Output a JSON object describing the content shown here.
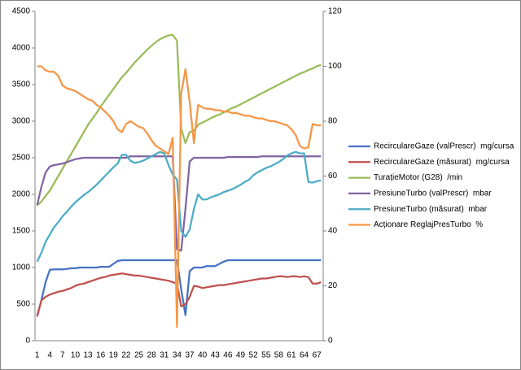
{
  "chart_data": {
    "type": "line",
    "categories": [
      1,
      null,
      null,
      4,
      null,
      null,
      7,
      null,
      null,
      10,
      null,
      null,
      13,
      null,
      null,
      16,
      null,
      null,
      19,
      null,
      null,
      22,
      null,
      null,
      25,
      null,
      null,
      28,
      null,
      null,
      31,
      null,
      null,
      34,
      null,
      null,
      37,
      null,
      null,
      40,
      null,
      null,
      43,
      null,
      null,
      46,
      null,
      null,
      49,
      null,
      null,
      52,
      null,
      null,
      55,
      null,
      null,
      58,
      null,
      null,
      61,
      null,
      null,
      64,
      null,
      null,
      67,
      null
    ],
    "ylim": [
      0,
      4500
    ],
    "yticks": [
      0,
      500,
      1000,
      1500,
      2000,
      2500,
      3000,
      3500,
      4000,
      4500
    ],
    "y2lim": [
      0,
      120
    ],
    "y2ticks": [
      0,
      20,
      40,
      60,
      80,
      100,
      120
    ],
    "legend": "right",
    "series": [
      {
        "name": "RecirculareGaze (valPrescr)  mg/cursa",
        "color": "#4472c4",
        "values": [
          340,
          550,
          800,
          970,
          975,
          975,
          975,
          980,
          990,
          990,
          1000,
          1000,
          1000,
          1000,
          1000,
          1010,
          1010,
          1010,
          1050,
          1090,
          1100,
          1100,
          1100,
          1100,
          1100,
          1100,
          1100,
          1100,
          1100,
          1100,
          1100,
          1100,
          1100,
          1100,
          700,
          350,
          950,
          1000,
          1000,
          1000,
          1020,
          1020,
          1020,
          1050,
          1080,
          1100,
          1100,
          1100,
          1100,
          1100,
          1100,
          1100,
          1100,
          1100,
          1100,
          1100,
          1100,
          1100,
          1100,
          1100,
          1100,
          1100,
          1100,
          1100,
          1100,
          1100,
          1100,
          1100
        ]
      },
      {
        "name": "RecirculareGaze (măsurat)  mg/cursa",
        "color": "#c0504d",
        "values": [
          330,
          550,
          600,
          630,
          650,
          670,
          680,
          700,
          720,
          750,
          770,
          780,
          800,
          820,
          840,
          860,
          870,
          890,
          900,
          910,
          920,
          910,
          900,
          890,
          890,
          880,
          870,
          860,
          850,
          840,
          830,
          820,
          800,
          780,
          470,
          500,
          600,
          750,
          740,
          720,
          730,
          740,
          750,
          760,
          760,
          770,
          780,
          790,
          800,
          810,
          820,
          830,
          840,
          850,
          850,
          860,
          870,
          880,
          880,
          870,
          880,
          880,
          870,
          880,
          870,
          780,
          780,
          800
        ]
      },
      {
        "name": "TurațieMotor (G28)  /min",
        "color": "#9bbb59",
        "values": [
          1850,
          1900,
          1980,
          2050,
          2150,
          2250,
          2350,
          2450,
          2550,
          2650,
          2750,
          2850,
          2950,
          3030,
          3110,
          3200,
          3280,
          3360,
          3440,
          3520,
          3600,
          3660,
          3730,
          3800,
          3860,
          3920,
          3980,
          4030,
          4080,
          4120,
          4150,
          4170,
          4180,
          4100,
          2900,
          2700,
          2850,
          2870,
          2950,
          2980,
          3010,
          3040,
          3070,
          3090,
          3120,
          3150,
          3180,
          3200,
          3230,
          3260,
          3290,
          3320,
          3350,
          3380,
          3410,
          3440,
          3470,
          3500,
          3530,
          3560,
          3590,
          3620,
          3650,
          3670,
          3700,
          3720,
          3750,
          3770
        ]
      },
      {
        "name": "PresiuneTurbo (valPrescr)  mbar",
        "color": "#8064a2",
        "values": [
          1850,
          2100,
          2300,
          2380,
          2400,
          2410,
          2420,
          2440,
          2460,
          2480,
          2490,
          2500,
          2500,
          2500,
          2500,
          2500,
          2500,
          2500,
          2500,
          2500,
          2500,
          2500,
          2520,
          2520,
          2520,
          2520,
          2520,
          2520,
          2520,
          2520,
          2520,
          2520,
          2520,
          1250,
          1230,
          1800,
          2450,
          2500,
          2500,
          2500,
          2500,
          2500,
          2500,
          2500,
          2500,
          2510,
          2510,
          2510,
          2510,
          2510,
          2510,
          2510,
          2510,
          2520,
          2520,
          2520,
          2520,
          2520,
          2520,
          2520,
          2520,
          2520,
          2520,
          2520,
          2520,
          2520,
          2520,
          2520
        ]
      },
      {
        "name": "PresiuneTurbo (măsurat)  mbar",
        "color": "#4bacc6",
        "values": [
          1080,
          1200,
          1350,
          1450,
          1550,
          1620,
          1700,
          1760,
          1830,
          1890,
          1940,
          1990,
          2030,
          2080,
          2130,
          2190,
          2250,
          2310,
          2370,
          2420,
          2540,
          2540,
          2460,
          2430,
          2440,
          2460,
          2490,
          2520,
          2550,
          2580,
          2560,
          2400,
          2270,
          2200,
          1500,
          1420,
          1520,
          1800,
          2000,
          1930,
          1930,
          1960,
          1980,
          2000,
          2030,
          2050,
          2070,
          2100,
          2130,
          2170,
          2200,
          2260,
          2300,
          2330,
          2360,
          2380,
          2410,
          2440,
          2480,
          2530,
          2560,
          2580,
          2560,
          2560,
          2170,
          2160,
          2180,
          2190
        ]
      },
      {
        "name": "Acționare ReglajPresTurbo  %",
        "color": "#f79646",
        "axis": "y2",
        "values": [
          100,
          100,
          98.5,
          98,
          98,
          96.5,
          93,
          92,
          91.5,
          91,
          90,
          89,
          88,
          87.5,
          86,
          85,
          83.5,
          82,
          80,
          77,
          76,
          79,
          80,
          79,
          78,
          77.5,
          75.5,
          73,
          71,
          70,
          69,
          68,
          74,
          5,
          90,
          99,
          87,
          72,
          86,
          85,
          84.5,
          84.5,
          84,
          84,
          83.5,
          83.5,
          83,
          83,
          82.5,
          82,
          82,
          81.5,
          81,
          81,
          80.5,
          80,
          80,
          79.5,
          79,
          78.5,
          77,
          75,
          71,
          70,
          70.5,
          79,
          78.5,
          78.5
        ]
      }
    ]
  }
}
